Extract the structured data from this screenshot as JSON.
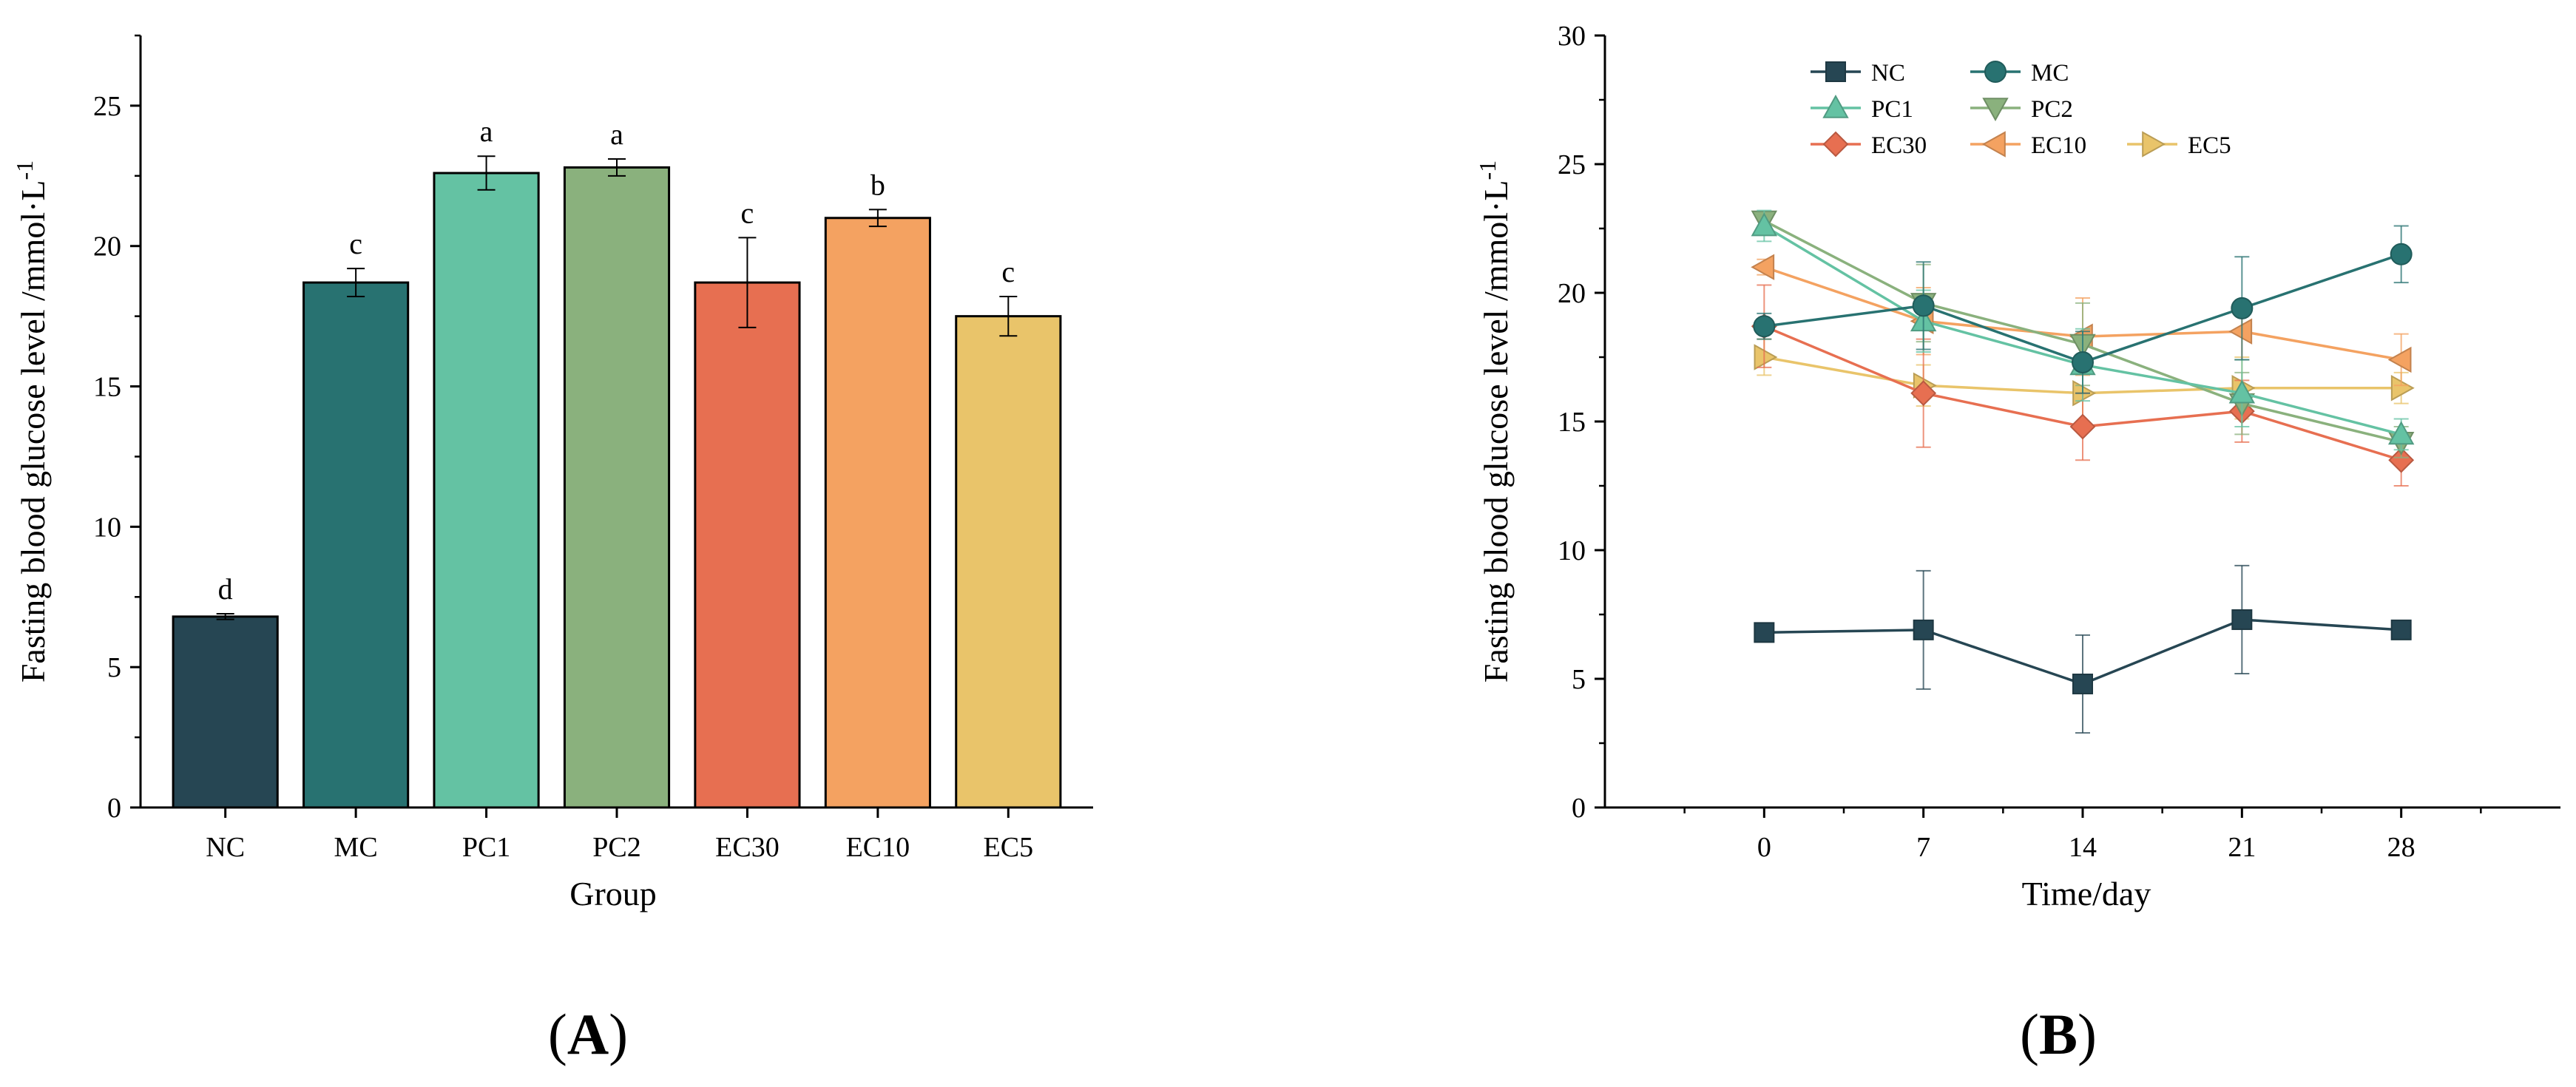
{
  "chart_data": [
    {
      "type": "bar",
      "panel_label": "A",
      "title": "",
      "xlabel": "Group",
      "ylabel": "Fasting blood glucose level /mmol·L",
      "ylabel_superscript": "-1",
      "ylim": [
        0,
        27.5
      ],
      "yticks": [
        "0",
        "5",
        "10",
        "15",
        "20",
        "25"
      ],
      "categories": [
        "NC",
        "MC",
        "PC1",
        "PC2",
        "EC30",
        "EC10",
        "EC5"
      ],
      "values": [
        6.8,
        18.7,
        22.6,
        22.8,
        18.7,
        21.0,
        17.5
      ],
      "errors": [
        0.1,
        0.5,
        0.6,
        0.3,
        1.6,
        0.3,
        0.7
      ],
      "significance": [
        "d",
        "c",
        "a",
        "a",
        "c",
        "b",
        "c"
      ],
      "colors": [
        "#264653",
        "#287271",
        "#64c2a3",
        "#8ab17d",
        "#e76f51",
        "#f4a261",
        "#e9c46a"
      ]
    },
    {
      "type": "line",
      "panel_label": "B",
      "title": "",
      "xlabel": "Time/day",
      "ylabel": "Fasting blood glucose level /mmol·L",
      "ylabel_superscript": "-1",
      "xlim": [
        -7,
        35
      ],
      "ylim": [
        0,
        30
      ],
      "x": [
        0,
        7,
        14,
        21,
        28
      ],
      "xticks": [
        "0",
        "7",
        "14",
        "21",
        "28"
      ],
      "yticks": [
        "0",
        "5",
        "10",
        "15",
        "20",
        "25",
        "30"
      ],
      "legend_position": "top-left",
      "series": [
        {
          "name": "NC",
          "marker": "square",
          "color": "#264653",
          "values": [
            6.8,
            6.9,
            4.8,
            7.3,
            6.9
          ],
          "errors": [
            0.1,
            2.3,
            1.9,
            2.1,
            0.1
          ]
        },
        {
          "name": "MC",
          "marker": "circle",
          "color": "#287271",
          "values": [
            18.7,
            19.5,
            17.3,
            19.4,
            21.5
          ],
          "errors": [
            0.5,
            1.7,
            1.2,
            2.0,
            1.1
          ]
        },
        {
          "name": "PC1",
          "marker": "triangle-up",
          "color": "#64c2a3",
          "values": [
            22.6,
            18.9,
            17.2,
            16.1,
            14.5
          ],
          "errors": [
            0.6,
            1.2,
            1.4,
            1.3,
            0.6
          ]
        },
        {
          "name": "PC2",
          "marker": "triangle-down",
          "color": "#8ab17d",
          "values": [
            22.8,
            19.6,
            18.0,
            15.7,
            14.2
          ],
          "errors": [
            0.3,
            1.5,
            1.6,
            1.2,
            0.6
          ]
        },
        {
          "name": "EC30",
          "marker": "diamond",
          "color": "#e76f51",
          "values": [
            18.7,
            16.1,
            14.8,
            15.4,
            13.5
          ],
          "errors": [
            1.6,
            2.1,
            1.3,
            1.2,
            1.0
          ]
        },
        {
          "name": "EC10",
          "marker": "triangle-left",
          "color": "#f4a261",
          "values": [
            21.0,
            18.9,
            18.3,
            18.5,
            17.4
          ],
          "errors": [
            0.3,
            1.3,
            1.5,
            1.1,
            1.0
          ]
        },
        {
          "name": "EC5",
          "marker": "triangle-right",
          "color": "#e9c46a",
          "values": [
            17.5,
            16.4,
            16.1,
            16.3,
            16.3
          ],
          "errors": [
            0.7,
            0.8,
            1.4,
            1.2,
            0.6
          ]
        }
      ]
    }
  ]
}
